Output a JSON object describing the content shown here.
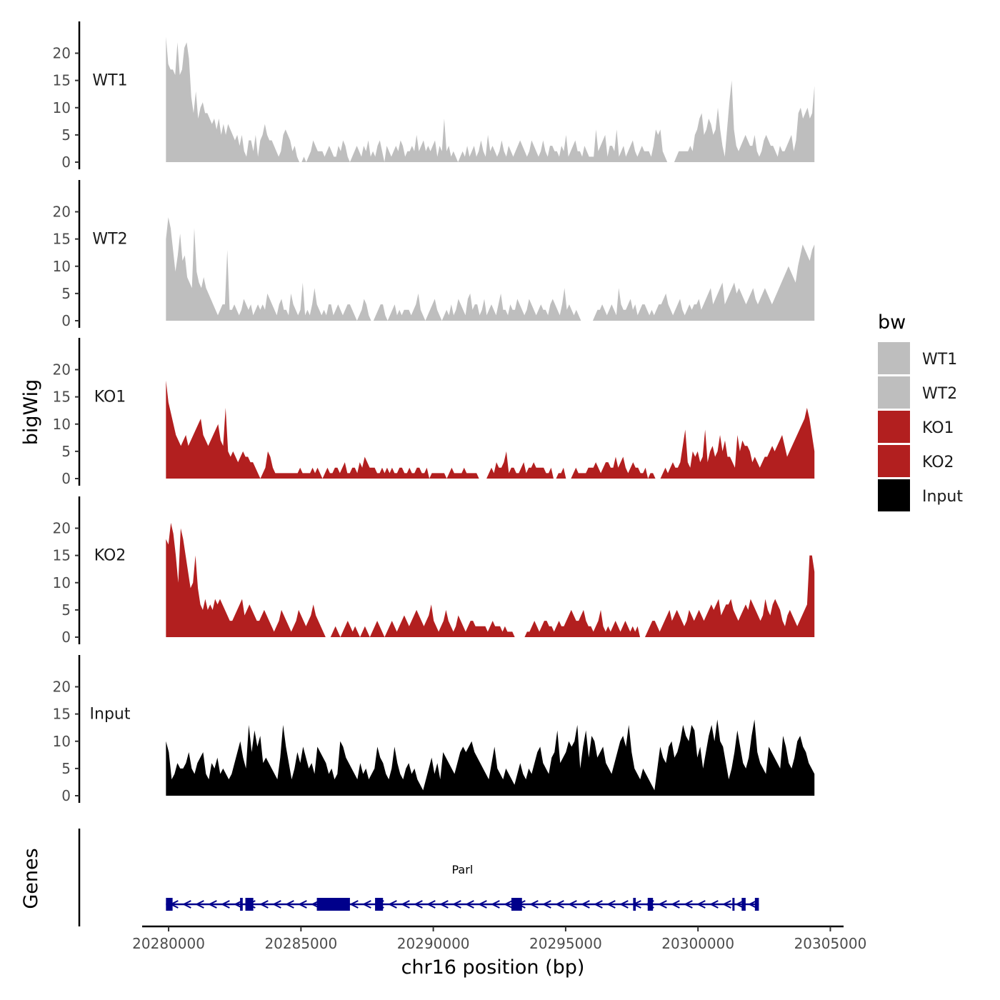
{
  "chart_data": {
    "type": "area",
    "ylabel": "bigWig",
    "xlabel": "chr16 position (bp)",
    "xlim": [
      20279000,
      20305500
    ],
    "ylim": [
      0,
      24
    ],
    "x_ticks": [
      20280000,
      20285000,
      20290000,
      20295000,
      20300000,
      20305000
    ],
    "x_tick_labels": [
      "20280000",
      "20285000",
      "20290000",
      "20295000",
      "20300000",
      "20305000"
    ],
    "y_ticks": [
      0,
      5,
      10,
      15,
      20
    ],
    "y_tick_labels": [
      "0",
      "5",
      "10",
      "15",
      "20"
    ],
    "x_range_data": [
      20279900,
      20304400
    ],
    "legend": {
      "title": "bw",
      "position": "right",
      "entries": [
        {
          "label": "WT1",
          "color": "#bebebe"
        },
        {
          "label": "WT2",
          "color": "#bebebe"
        },
        {
          "label": "KO1",
          "color": "#b21f1f"
        },
        {
          "label": "KO2",
          "color": "#b21f1f"
        },
        {
          "label": "Input",
          "color": "#000000"
        }
      ]
    },
    "series": [
      {
        "name": "WT1",
        "color": "#bebebe",
        "values": [
          23,
          18,
          17,
          17,
          16,
          22,
          16,
          17,
          21,
          22,
          19,
          12,
          9,
          13,
          8,
          10,
          11,
          9,
          9,
          8,
          7,
          8,
          6,
          8,
          5,
          7,
          5,
          7,
          6,
          5,
          4,
          5,
          3,
          5,
          2,
          1,
          4,
          4,
          2,
          5,
          1,
          4,
          5,
          7,
          5,
          4,
          4,
          3,
          2,
          1,
          2,
          5,
          6,
          5,
          4,
          2,
          3,
          1,
          0,
          0,
          1,
          0,
          1,
          2,
          4,
          3,
          2,
          2,
          2,
          1,
          2,
          3,
          2,
          1,
          1,
          3,
          2,
          4,
          3,
          1,
          0,
          1,
          2,
          3,
          2,
          1,
          3,
          2,
          4,
          1,
          2,
          1,
          3,
          4,
          2,
          0,
          3,
          2,
          1,
          2,
          3,
          2,
          4,
          3,
          1,
          2,
          2,
          3,
          2,
          5,
          2,
          3,
          4,
          2,
          3,
          2,
          3,
          4,
          1,
          3,
          2,
          8,
          2,
          3,
          1,
          2,
          1,
          0,
          1,
          2,
          1,
          3,
          1,
          2,
          3,
          1,
          2,
          4,
          2,
          1,
          5,
          2,
          3,
          2,
          1,
          2,
          4,
          2,
          1,
          3,
          2,
          1,
          2,
          3,
          4,
          3,
          2,
          1,
          2,
          4,
          3,
          2,
          1,
          2,
          4,
          2,
          1,
          3,
          3,
          2,
          2,
          1,
          3,
          2,
          5,
          1,
          2,
          3,
          4,
          2,
          2,
          1,
          3,
          2,
          1,
          1,
          1,
          6,
          2,
          3,
          4,
          5,
          1,
          3,
          3,
          2,
          6,
          1,
          2,
          3,
          1,
          2,
          3,
          4,
          2,
          1,
          2,
          3,
          2,
          2,
          2,
          1,
          3,
          6,
          5,
          6,
          2,
          1,
          0,
          0,
          0,
          0,
          1,
          2,
          2,
          2,
          2,
          2,
          3,
          2,
          5,
          6,
          8,
          9,
          5,
          6,
          8,
          7,
          5,
          6,
          10,
          6,
          3,
          1,
          6,
          11,
          15,
          6,
          3,
          2,
          3,
          4,
          5,
          4,
          3,
          3,
          5,
          2,
          1,
          2,
          4,
          5,
          4,
          3,
          3,
          2,
          1,
          3,
          2,
          2,
          3,
          4,
          5,
          2,
          4,
          9,
          10,
          8,
          9,
          10,
          8,
          9,
          14
        ]
      },
      {
        "name": "WT2",
        "color": "#bebebe",
        "values": [
          15,
          19,
          17,
          13,
          9,
          12,
          16,
          11,
          12,
          8,
          7,
          6,
          17,
          9,
          7,
          6,
          8,
          6,
          5,
          4,
          3,
          2,
          1,
          2,
          3,
          3,
          13,
          2,
          2,
          3,
          2,
          1,
          2,
          4,
          3,
          2,
          3,
          1,
          2,
          3,
          2,
          3,
          2,
          5,
          4,
          3,
          2,
          1,
          3,
          4,
          2,
          2,
          1,
          5,
          3,
          2,
          1,
          2,
          7,
          1,
          2,
          1,
          3,
          6,
          3,
          2,
          1,
          2,
          1,
          3,
          3,
          1,
          2,
          3,
          2,
          1,
          2,
          3,
          3,
          2,
          1,
          0,
          1,
          2,
          4,
          3,
          1,
          0,
          0,
          1,
          2,
          3,
          3,
          1,
          0,
          1,
          2,
          3,
          1,
          2,
          1,
          2,
          2,
          2,
          1,
          2,
          3,
          5,
          2,
          1,
          0,
          1,
          2,
          3,
          4,
          2,
          1,
          0,
          1,
          2,
          1,
          3,
          1,
          2,
          4,
          3,
          2,
          1,
          4,
          5,
          2,
          3,
          3,
          1,
          2,
          4,
          1,
          2,
          3,
          2,
          1,
          3,
          5,
          2,
          2,
          1,
          3,
          2,
          2,
          4,
          3,
          2,
          1,
          2,
          4,
          3,
          2,
          1,
          2,
          3,
          2,
          2,
          1,
          3,
          4,
          3,
          2,
          1,
          3,
          6,
          2,
          3,
          2,
          1,
          2,
          1,
          0,
          0,
          0,
          0,
          0,
          0,
          1,
          2,
          2,
          3,
          2,
          1,
          2,
          3,
          2,
          1,
          6,
          3,
          2,
          2,
          3,
          4,
          2,
          3,
          1,
          2,
          3,
          3,
          2,
          1,
          2,
          1,
          2,
          3,
          3,
          4,
          5,
          3,
          2,
          1,
          2,
          3,
          4,
          2,
          1,
          2,
          3,
          2,
          3,
          3,
          4,
          2,
          3,
          4,
          5,
          6,
          3,
          4,
          5,
          6,
          7,
          3,
          4,
          5,
          6,
          7,
          5,
          6,
          5,
          4,
          3,
          4,
          5,
          6,
          4,
          3,
          4,
          5,
          6,
          5,
          4,
          3,
          4,
          5,
          6,
          7,
          8,
          9,
          10,
          9,
          8,
          7,
          10,
          12,
          14,
          13,
          12,
          11,
          13,
          14
        ]
      },
      {
        "name": "KO1",
        "color": "#b21f1f",
        "values": [
          18,
          14,
          12,
          10,
          8,
          7,
          6,
          7,
          8,
          6,
          7,
          8,
          9,
          10,
          11,
          8,
          7,
          6,
          7,
          8,
          9,
          10,
          7,
          6,
          13,
          5,
          4,
          5,
          4,
          3,
          4,
          5,
          4,
          4,
          3,
          3,
          2,
          1,
          0,
          1,
          2,
          5,
          4,
          2,
          1,
          1,
          1,
          1,
          1,
          1,
          1,
          1,
          1,
          1,
          2,
          1,
          1,
          1,
          1,
          2,
          1,
          2,
          1,
          0,
          1,
          2,
          1,
          1,
          2,
          2,
          1,
          2,
          3,
          1,
          1,
          2,
          2,
          1,
          3,
          2,
          4,
          3,
          2,
          2,
          2,
          1,
          1,
          2,
          1,
          2,
          1,
          2,
          1,
          1,
          2,
          2,
          1,
          1,
          2,
          1,
          1,
          2,
          2,
          1,
          1,
          2,
          0,
          1,
          1,
          1,
          1,
          1,
          1,
          0,
          1,
          2,
          1,
          1,
          1,
          1,
          2,
          1,
          1,
          1,
          1,
          1,
          0,
          0,
          0,
          0,
          1,
          2,
          1,
          3,
          2,
          2,
          3,
          5,
          1,
          2,
          2,
          1,
          1,
          2,
          3,
          1,
          2,
          2,
          3,
          2,
          2,
          2,
          2,
          1,
          1,
          2,
          0,
          0,
          1,
          1,
          2,
          0,
          0,
          0,
          1,
          2,
          1,
          1,
          1,
          1,
          2,
          2,
          2,
          3,
          2,
          1,
          2,
          3,
          3,
          2,
          2,
          4,
          2,
          3,
          4,
          2,
          1,
          2,
          3,
          2,
          2,
          1,
          1,
          2,
          0,
          1,
          1,
          0,
          0,
          0,
          1,
          2,
          1,
          2,
          3,
          2,
          2,
          3,
          6,
          9,
          3,
          2,
          5,
          4,
          5,
          3,
          4,
          9,
          3,
          5,
          6,
          4,
          5,
          8,
          5,
          7,
          4,
          4,
          3,
          2,
          8,
          5,
          7,
          6,
          6,
          5,
          3,
          4,
          3,
          2,
          3,
          4,
          4,
          5,
          6,
          5,
          6,
          7,
          8,
          6,
          4,
          5,
          6,
          7,
          8,
          9,
          10,
          11,
          13,
          11,
          8,
          5
        ]
      },
      {
        "name": "KO2",
        "color": "#b21f1f",
        "values": [
          18,
          17,
          21,
          19,
          15,
          10,
          20,
          18,
          15,
          12,
          9,
          10,
          15,
          9,
          6,
          5,
          7,
          5,
          6,
          5,
          7,
          6,
          7,
          6,
          5,
          4,
          3,
          3,
          4,
          5,
          6,
          7,
          4,
          5,
          6,
          5,
          4,
          3,
          3,
          4,
          5,
          4,
          3,
          2,
          1,
          2,
          3,
          5,
          4,
          3,
          2,
          1,
          2,
          3,
          5,
          4,
          3,
          2,
          3,
          4,
          6,
          4,
          3,
          2,
          1,
          0,
          0,
          0,
          1,
          2,
          1,
          0,
          1,
          2,
          3,
          2,
          1,
          2,
          1,
          0,
          1,
          2,
          1,
          0,
          1,
          2,
          3,
          2,
          1,
          0,
          1,
          2,
          3,
          2,
          1,
          2,
          3,
          4,
          3,
          2,
          3,
          4,
          5,
          4,
          3,
          2,
          3,
          4,
          6,
          3,
          2,
          1,
          2,
          3,
          5,
          3,
          2,
          1,
          2,
          4,
          3,
          2,
          1,
          2,
          3,
          3,
          2,
          2,
          2,
          2,
          2,
          1,
          2,
          3,
          2,
          2,
          2,
          1,
          2,
          1,
          1,
          1,
          0,
          0,
          0,
          0,
          0,
          1,
          1,
          2,
          3,
          2,
          1,
          2,
          3,
          3,
          2,
          2,
          1,
          2,
          3,
          2,
          2,
          3,
          4,
          5,
          4,
          3,
          3,
          4,
          5,
          3,
          2,
          2,
          1,
          2,
          3,
          5,
          2,
          1,
          2,
          1,
          2,
          3,
          2,
          1,
          2,
          3,
          2,
          1,
          2,
          1,
          2,
          0,
          0,
          0,
          1,
          2,
          3,
          3,
          2,
          1,
          2,
          3,
          4,
          5,
          3,
          4,
          5,
          4,
          3,
          2,
          3,
          5,
          4,
          3,
          4,
          5,
          4,
          3,
          4,
          5,
          6,
          5,
          6,
          7,
          4,
          5,
          6,
          6,
          7,
          5,
          4,
          3,
          4,
          5,
          6,
          5,
          7,
          6,
          5,
          4,
          3,
          4,
          7,
          5,
          4,
          6,
          7,
          6,
          5,
          3,
          2,
          4,
          5,
          4,
          3,
          2,
          3,
          4,
          5,
          6,
          15,
          15,
          12
        ]
      },
      {
        "name": "Input",
        "color": "#000000",
        "values": [
          10,
          8,
          3,
          4,
          6,
          5,
          5,
          6,
          8,
          5,
          4,
          6,
          7,
          8,
          4,
          3,
          6,
          5,
          7,
          4,
          5,
          4,
          3,
          4,
          6,
          8,
          10,
          7,
          5,
          13,
          8,
          12,
          9,
          11,
          6,
          7,
          6,
          5,
          4,
          3,
          7,
          13,
          9,
          6,
          3,
          5,
          8,
          6,
          9,
          7,
          5,
          6,
          4,
          9,
          8,
          7,
          6,
          4,
          5,
          3,
          4,
          10,
          9,
          7,
          6,
          5,
          4,
          3,
          6,
          4,
          5,
          3,
          4,
          5,
          9,
          7,
          6,
          4,
          3,
          5,
          9,
          6,
          4,
          3,
          5,
          6,
          4,
          5,
          3,
          2,
          1,
          3,
          5,
          7,
          4,
          6,
          3,
          8,
          7,
          6,
          5,
          4,
          6,
          8,
          9,
          8,
          9,
          10,
          8,
          7,
          6,
          5,
          4,
          3,
          6,
          9,
          5,
          4,
          3,
          5,
          4,
          3,
          2,
          4,
          6,
          4,
          3,
          5,
          4,
          6,
          8,
          9,
          6,
          5,
          4,
          7,
          8,
          12,
          6,
          7,
          8,
          10,
          9,
          10,
          13,
          5,
          9,
          12,
          7,
          11,
          10,
          7,
          8,
          9,
          6,
          5,
          4,
          6,
          8,
          10,
          11,
          9,
          13,
          8,
          5,
          4,
          3,
          5,
          4,
          3,
          2,
          1,
          5,
          9,
          7,
          6,
          9,
          10,
          7,
          8,
          10,
          13,
          11,
          10,
          13,
          12,
          7,
          9,
          5,
          8,
          11,
          13,
          10,
          14,
          10,
          9,
          6,
          3,
          5,
          8,
          12,
          9,
          6,
          5,
          7,
          11,
          14,
          8,
          6,
          5,
          4,
          9,
          8,
          7,
          6,
          5,
          11,
          9,
          6,
          5,
          7,
          10,
          11,
          9,
          8,
          6,
          5,
          4
        ]
      }
    ],
    "genes": [
      {
        "name": "Parl",
        "strand": "-",
        "start": 20279900,
        "end": 20302300,
        "exons": [
          [
            20279900,
            20280150
          ],
          [
            20282700,
            20282800
          ],
          [
            20282900,
            20283200
          ],
          [
            20285600,
            20286850
          ],
          [
            20287800,
            20288100
          ],
          [
            20292950,
            20293350
          ],
          [
            20297550,
            20297650
          ],
          [
            20298100,
            20298300
          ],
          [
            20301300,
            20301350
          ],
          [
            20301650,
            20301800
          ],
          [
            20302150,
            20302300
          ]
        ]
      }
    ],
    "genes_panel_label": "Genes"
  }
}
